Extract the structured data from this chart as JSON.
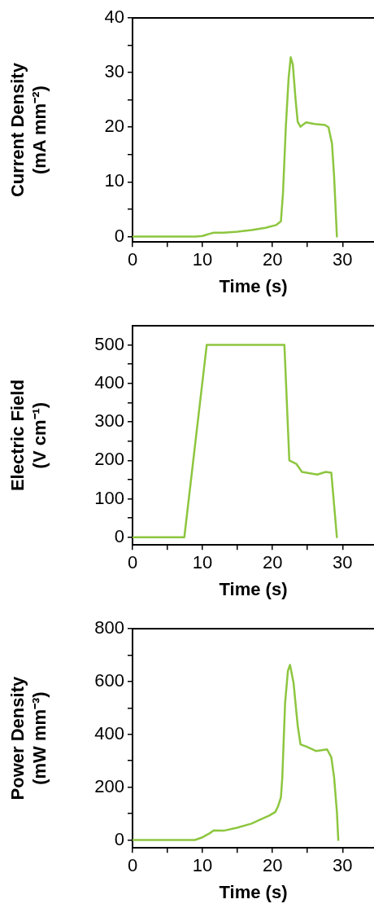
{
  "chart_data": [
    {
      "type": "line",
      "xlabel": "Time (s)",
      "ylabel": "Current Density\n(mA mm⁻²)",
      "xlim": [
        0,
        34.5
      ],
      "ylim": [
        -1,
        40
      ],
      "xticks": [
        0,
        {
          "value": 5,
          "label": null
        },
        10,
        {
          "value": 15,
          "label": null
        },
        20,
        {
          "value": 25,
          "label": null
        },
        30
      ],
      "yticks": [
        0,
        {
          "value": 5,
          "label": null
        },
        10,
        {
          "value": 15,
          "label": null
        },
        20,
        {
          "value": 25,
          "label": null
        },
        30,
        {
          "value": 35,
          "label": null
        },
        40
      ],
      "grid": false,
      "legend": false,
      "marker": "none",
      "line_style": "solid",
      "series": [
        {
          "color": "#8dc63f",
          "x": [
            0,
            9,
            10,
            11,
            11.6,
            13,
            15,
            17,
            19,
            20.5,
            21.2,
            21.5,
            21.9,
            22.3,
            22.6,
            22.9,
            23.3,
            23.6,
            24,
            24.8,
            26,
            27.5,
            28,
            28.5,
            28.8,
            29.2
          ],
          "values": [
            0,
            0,
            0.1,
            0.5,
            0.7,
            0.7,
            0.9,
            1.2,
            1.6,
            2.1,
            2.8,
            8,
            20,
            29,
            32.8,
            31.5,
            25,
            21,
            20.1,
            20.9,
            20.6,
            20.4,
            20,
            17,
            11,
            0
          ]
        }
      ]
    },
    {
      "type": "line",
      "xlabel": "Time (s)",
      "ylabel": "Electric Field\n(V cm⁻¹)",
      "xlim": [
        0,
        34.5
      ],
      "ylim": [
        -20,
        550
      ],
      "xticks": [
        0,
        {
          "value": 5,
          "label": null
        },
        10,
        {
          "value": 15,
          "label": null
        },
        20,
        {
          "value": 25,
          "label": null
        },
        30
      ],
      "yticks": [
        0,
        {
          "value": 50,
          "label": null
        },
        100,
        {
          "value": 150,
          "label": null
        },
        200,
        {
          "value": 250,
          "label": null
        },
        300,
        {
          "value": 350,
          "label": null
        },
        400,
        {
          "value": 450,
          "label": null
        },
        500
      ],
      "grid": false,
      "legend": false,
      "marker": "none",
      "line_style": "solid",
      "series": [
        {
          "color": "#8dc63f",
          "x": [
            0,
            7.4,
            10.6,
            21.7,
            22.4,
            23.4,
            24.2,
            26.4,
            27.6,
            28.4,
            29.2
          ],
          "values": [
            0,
            0,
            500,
            500,
            200,
            191,
            170,
            163,
            170,
            168,
            0
          ]
        }
      ]
    },
    {
      "type": "line",
      "xlabel": "Time (s)",
      "ylabel": "Power Density\n(mW mm⁻³)",
      "xlim": [
        0,
        34.5
      ],
      "ylim": [
        -30,
        800
      ],
      "xticks": [
        0,
        {
          "value": 5,
          "label": null
        },
        10,
        {
          "value": 15,
          "label": null
        },
        20,
        {
          "value": 25,
          "label": null
        },
        30
      ],
      "yticks": [
        0,
        {
          "value": 100,
          "label": null
        },
        200,
        {
          "value": 300,
          "label": null
        },
        400,
        {
          "value": 500,
          "label": null
        },
        600,
        {
          "value": 700,
          "label": null
        },
        800
      ],
      "grid": false,
      "legend": false,
      "marker": "none",
      "line_style": "solid",
      "series": [
        {
          "color": "#8dc63f",
          "x": [
            0,
            8.9,
            9.9,
            11,
            11.6,
            13,
            14.9,
            17,
            18,
            19.5,
            20.4,
            20.8,
            21.2,
            21.4,
            21.8,
            22.2,
            22.5,
            23,
            23.6,
            24,
            24.8,
            26.2,
            27.8,
            28.4,
            28.8,
            29.2,
            29.4
          ],
          "values": [
            0,
            0,
            9,
            25,
            36,
            35,
            46,
            62,
            74,
            92,
            106,
            128,
            161,
            237,
            520,
            640,
            663,
            596,
            433,
            362,
            354,
            337,
            343,
            313,
            237,
            106,
            0
          ]
        }
      ]
    }
  ]
}
